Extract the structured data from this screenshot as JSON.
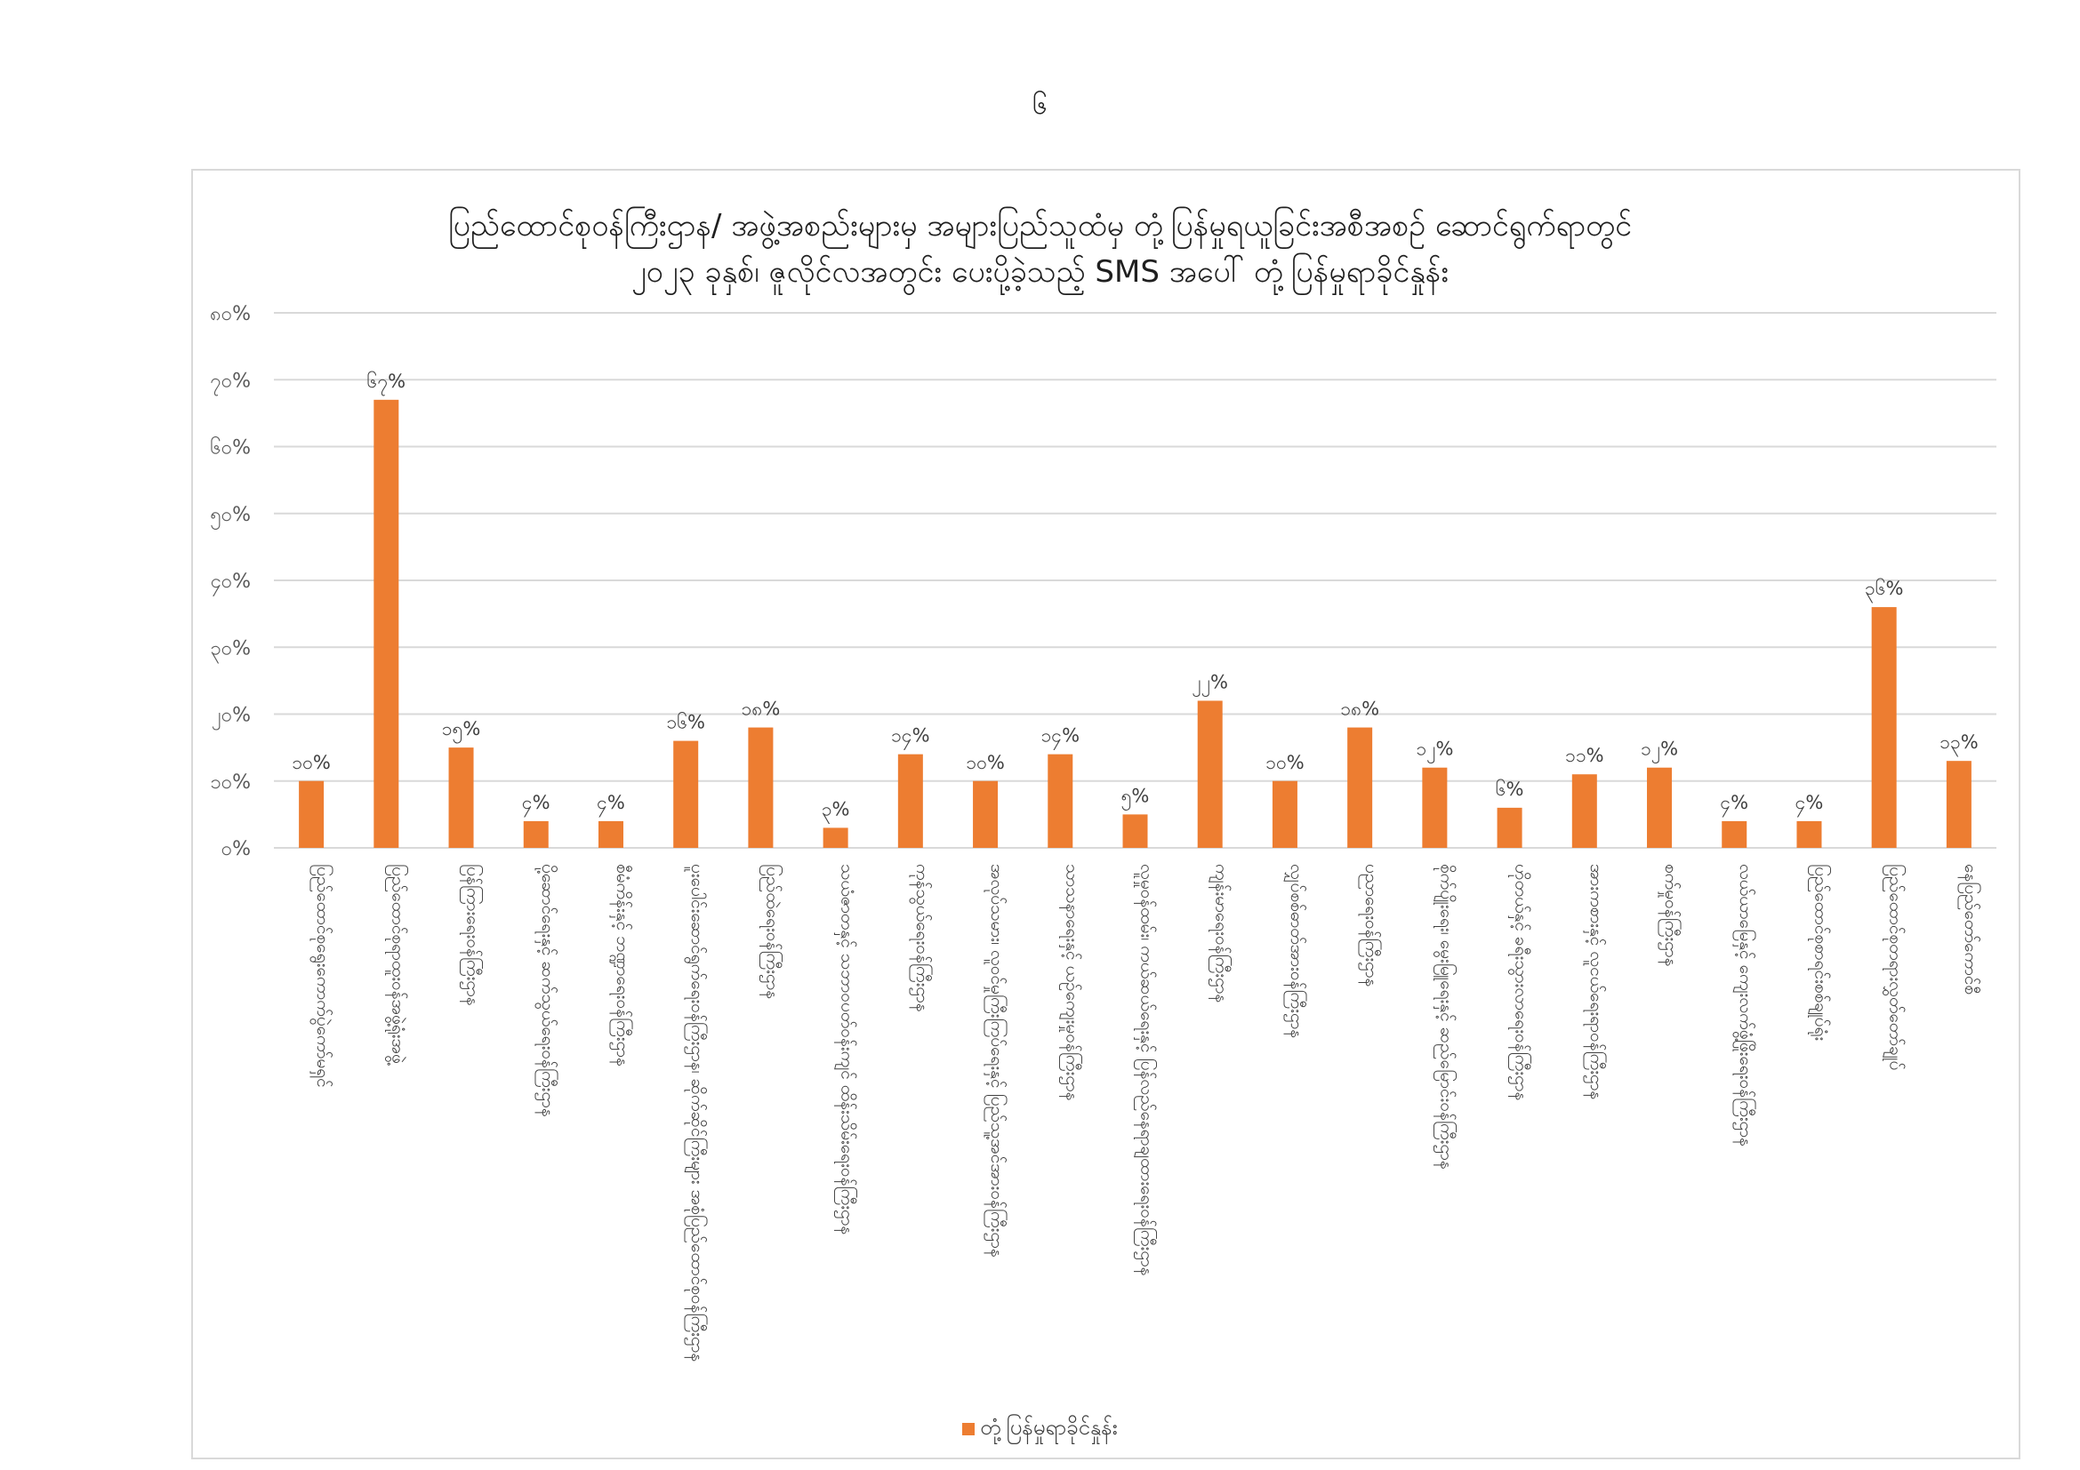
{
  "page_number": "၆",
  "chart_data": {
    "type": "bar",
    "title_lines": [
      "ပြည်ထောင်စုဝန်ကြီးဌာန/ အဖွဲ့အစည်းများမှ အများပြည်သူထံမှ တုံ့ပြန်မှုရယူခြင်းအစီအစဉ် ဆောင်ရွက်ရာတွင်",
      "၂၀၂၃ ခုနှစ်၊ ဇူလိုင်လအတွင်း ပေးပို့ခဲ့သည့် SMS အပေါ် တုံ့ပြန်မှုရာခိုင်နှုန်း"
    ],
    "y_ticks": [
      "၀%",
      "၁၀%",
      "၂၀%",
      "၃၀%",
      "၄၀%",
      "၅၀%",
      "၆၀%",
      "၇၀%",
      "၈၀%"
    ],
    "ylim": [
      0,
      80
    ],
    "grid": true,
    "legend_position": "bottom",
    "bar_color": "#ED7D31",
    "categories": [
      "ပြည်ထောင်စုရွေးကောက်ပွဲကော်မရှင်",
      "ပြည်ထောင်စုရာထူးဝန်အဖွဲ့ရုံးအဖွဲ့",
      "ပြန်ကြားရေးဝန်ကြီးဌာန",
      "ပို့ဆောင်ရေးနှင့် ဆက်သွယ်ရေးဝန်ကြီးဌာန",
      "စီမံကိန်းနှင့် ဘဏ္ဍာရေးဝန်ကြီးဌာန",
      "ပူးပေါင်းဆောင်ရွက်ရေးဝန်ကြီးဌာန၊ ဆိုက်ဆိုင်ကြီးများ အစုံပြည်ထောင်စုဝန်ကြီးဌာန",
      "ပြည်ထဲရေးဝန်ကြီးဌာန",
      "သယံဇာတနှင့် သဘာဝပတ်ဝန်းကျင် ထိန်းသိမ်းရေးဝန်ကြီးဌာန",
      "ကုန်သွယ်ရေးဝန်ကြီးဌာန",
      "အလုပ်သမား၊ လူဝင်မှုကြီးကြပ်ရေးနှင့် ပြည်သူ့အင်အားဝန်ကြီးဌာန",
      "သာသနာရေးနှင့် ယဉ်ကျေးမှုဝန်ကြီးဌာန",
      "လူမှုဝန်ထမ်း၊ ကယ်ဆယ်ရေးနှင့် ပြန်လည်နေရာချထားရေးဝန်ကြီးဌာန",
      "ကျန်းမာရေးဝန်ကြီးဌာန",
      "လျှပ်စစ်ဓာတ်အားဝန်ကြီးဌာန",
      "ပညာရေးဝန်ကြီးဌာန",
      "စိုက်ပျိုးရေး၊ မွေးမြူရေးနှင့် ဆည်မြောင်းဝန်ကြီးဌာန",
      "ဟိုတယ်နှင့် ခရီးသွားလာရေးဝန်ကြီးဌာန",
      "အားကစားနှင့် လူငယ်ရေးရာဝန်ကြီးဌာန",
      "စက်မှုဝန်ကြီးဌာန",
      "လယ်ယာမြေနှင့် ကျေးလက်ဖွံ့ဖြိုးရေးဝန်ကြီးဌာန",
      "ပြည်ထောင်စုစာရင်းစစ်ချုပ်ရုံး",
      "ပြည်ထောင်စုတရားလွှတ်တော်ချုပ်",
      "နေပြည်တော်ကောင်စီ"
    ],
    "series": [
      {
        "name": "တုံ့ပြန်မှုရာခိုင်နှုန်း",
        "values": [
          10,
          67,
          15,
          4,
          4,
          16,
          18,
          3,
          14,
          10,
          14,
          5,
          22,
          10,
          18,
          12,
          6,
          11,
          12,
          4,
          4,
          36,
          13
        ],
        "labels": [
          "၁၀%",
          "၆၇%",
          "၁၅%",
          "၄%",
          "၄%",
          "၁၆%",
          "၁၈%",
          "၃%",
          "၁၄%",
          "၁၀%",
          "၁၄%",
          "၅%",
          "၂၂%",
          "၁၀%",
          "၁၈%",
          "၁၂%",
          "၆%",
          "၁၁%",
          "၁၂%",
          "၄%",
          "၄%",
          "၃၆%",
          "၁၃%"
        ]
      }
    ]
  }
}
